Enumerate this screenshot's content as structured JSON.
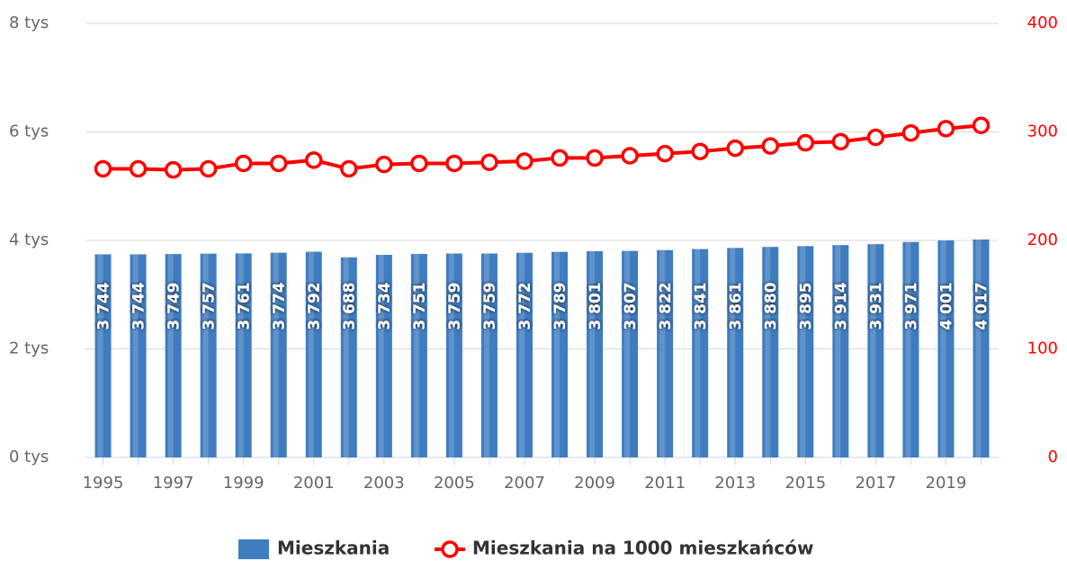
{
  "chart_data": {
    "type": "bar_line",
    "categories": [
      "1995",
      null,
      "1997",
      null,
      "1999",
      null,
      "2001",
      null,
      "2003",
      null,
      "2005",
      null,
      "2007",
      null,
      "2009",
      null,
      "2011",
      null,
      "2013",
      null,
      "2015",
      null,
      "2017",
      null,
      "2019",
      null
    ],
    "series": [
      {
        "name": "Mieszkania",
        "type": "bar",
        "color": "#3f7cc0",
        "values": [
          3744,
          3744,
          3749,
          3757,
          3761,
          3774,
          3792,
          3688,
          3734,
          3751,
          3759,
          3759,
          3772,
          3789,
          3801,
          3807,
          3822,
          3841,
          3861,
          3880,
          3895,
          3914,
          3931,
          3971,
          4001,
          4017
        ],
        "value_labels": [
          "3 744",
          "3 744",
          "3 749",
          "3 757",
          "3 761",
          "3 774",
          "3 792",
          "3 688",
          "3 734",
          "3 751",
          "3 759",
          "3 759",
          "3 772",
          "3 789",
          "3 801",
          "3 807",
          "3 822",
          "3 841",
          "3 861",
          "3 880",
          "3 895",
          "3 914",
          "3 931",
          "3 971",
          "4 001",
          "4 017"
        ]
      },
      {
        "name": "Mieszkania na 1000 mieszkańców",
        "type": "line",
        "axis": "y2",
        "color": "#ff0000",
        "values": [
          266,
          266,
          265,
          266,
          271,
          271,
          274,
          266,
          270,
          271,
          271,
          272,
          273,
          276,
          276,
          278,
          280,
          282,
          285,
          287,
          290,
          291,
          295,
          299,
          303,
          306
        ]
      }
    ],
    "ylim": [
      0,
      8000
    ],
    "yticks": [
      {
        "value": 0,
        "label": "0 tys"
      },
      {
        "value": 2000,
        "label": "2 tys"
      },
      {
        "value": 4000,
        "label": "4 tys"
      },
      {
        "value": 6000,
        "label": "6 tys"
      },
      {
        "value": 8000,
        "label": "8 tys"
      }
    ],
    "y2lim": [
      0,
      400
    ],
    "y2ticks": [
      0,
      100,
      200,
      300,
      400
    ],
    "y2color": "#ff0000",
    "grid": true,
    "legend": "bottom"
  }
}
